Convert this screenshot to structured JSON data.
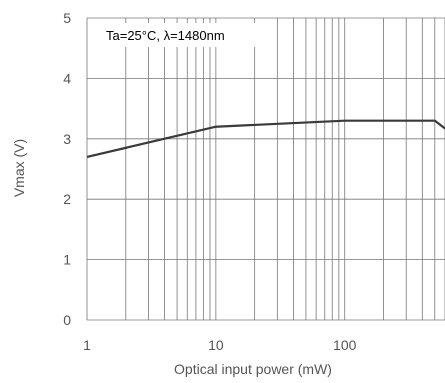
{
  "chart_data": {
    "type": "line",
    "title": "",
    "xlabel": "Optical input power (mW)",
    "ylabel": "Vmax (V)",
    "xscale": "log",
    "xlim": [
      1,
      600
    ],
    "ylim": [
      0,
      5
    ],
    "grid": true,
    "annotation": "Ta=25°C, λ=1480nm",
    "x_ticks": [
      1,
      10,
      100
    ],
    "x_tick_labels": [
      "1",
      "10",
      "100"
    ],
    "y_ticks": [
      0,
      1,
      2,
      3,
      4,
      5
    ],
    "y_tick_labels": [
      "0",
      "1",
      "2",
      "3",
      "4",
      "5"
    ],
    "series": [
      {
        "x": [
          1,
          10,
          100,
          200,
          500,
          600
        ],
        "y": [
          2.7,
          3.2,
          3.3,
          3.3,
          3.3,
          3.17
        ]
      }
    ],
    "line_color": "#3a3a3a",
    "grid_color": "#777777"
  }
}
